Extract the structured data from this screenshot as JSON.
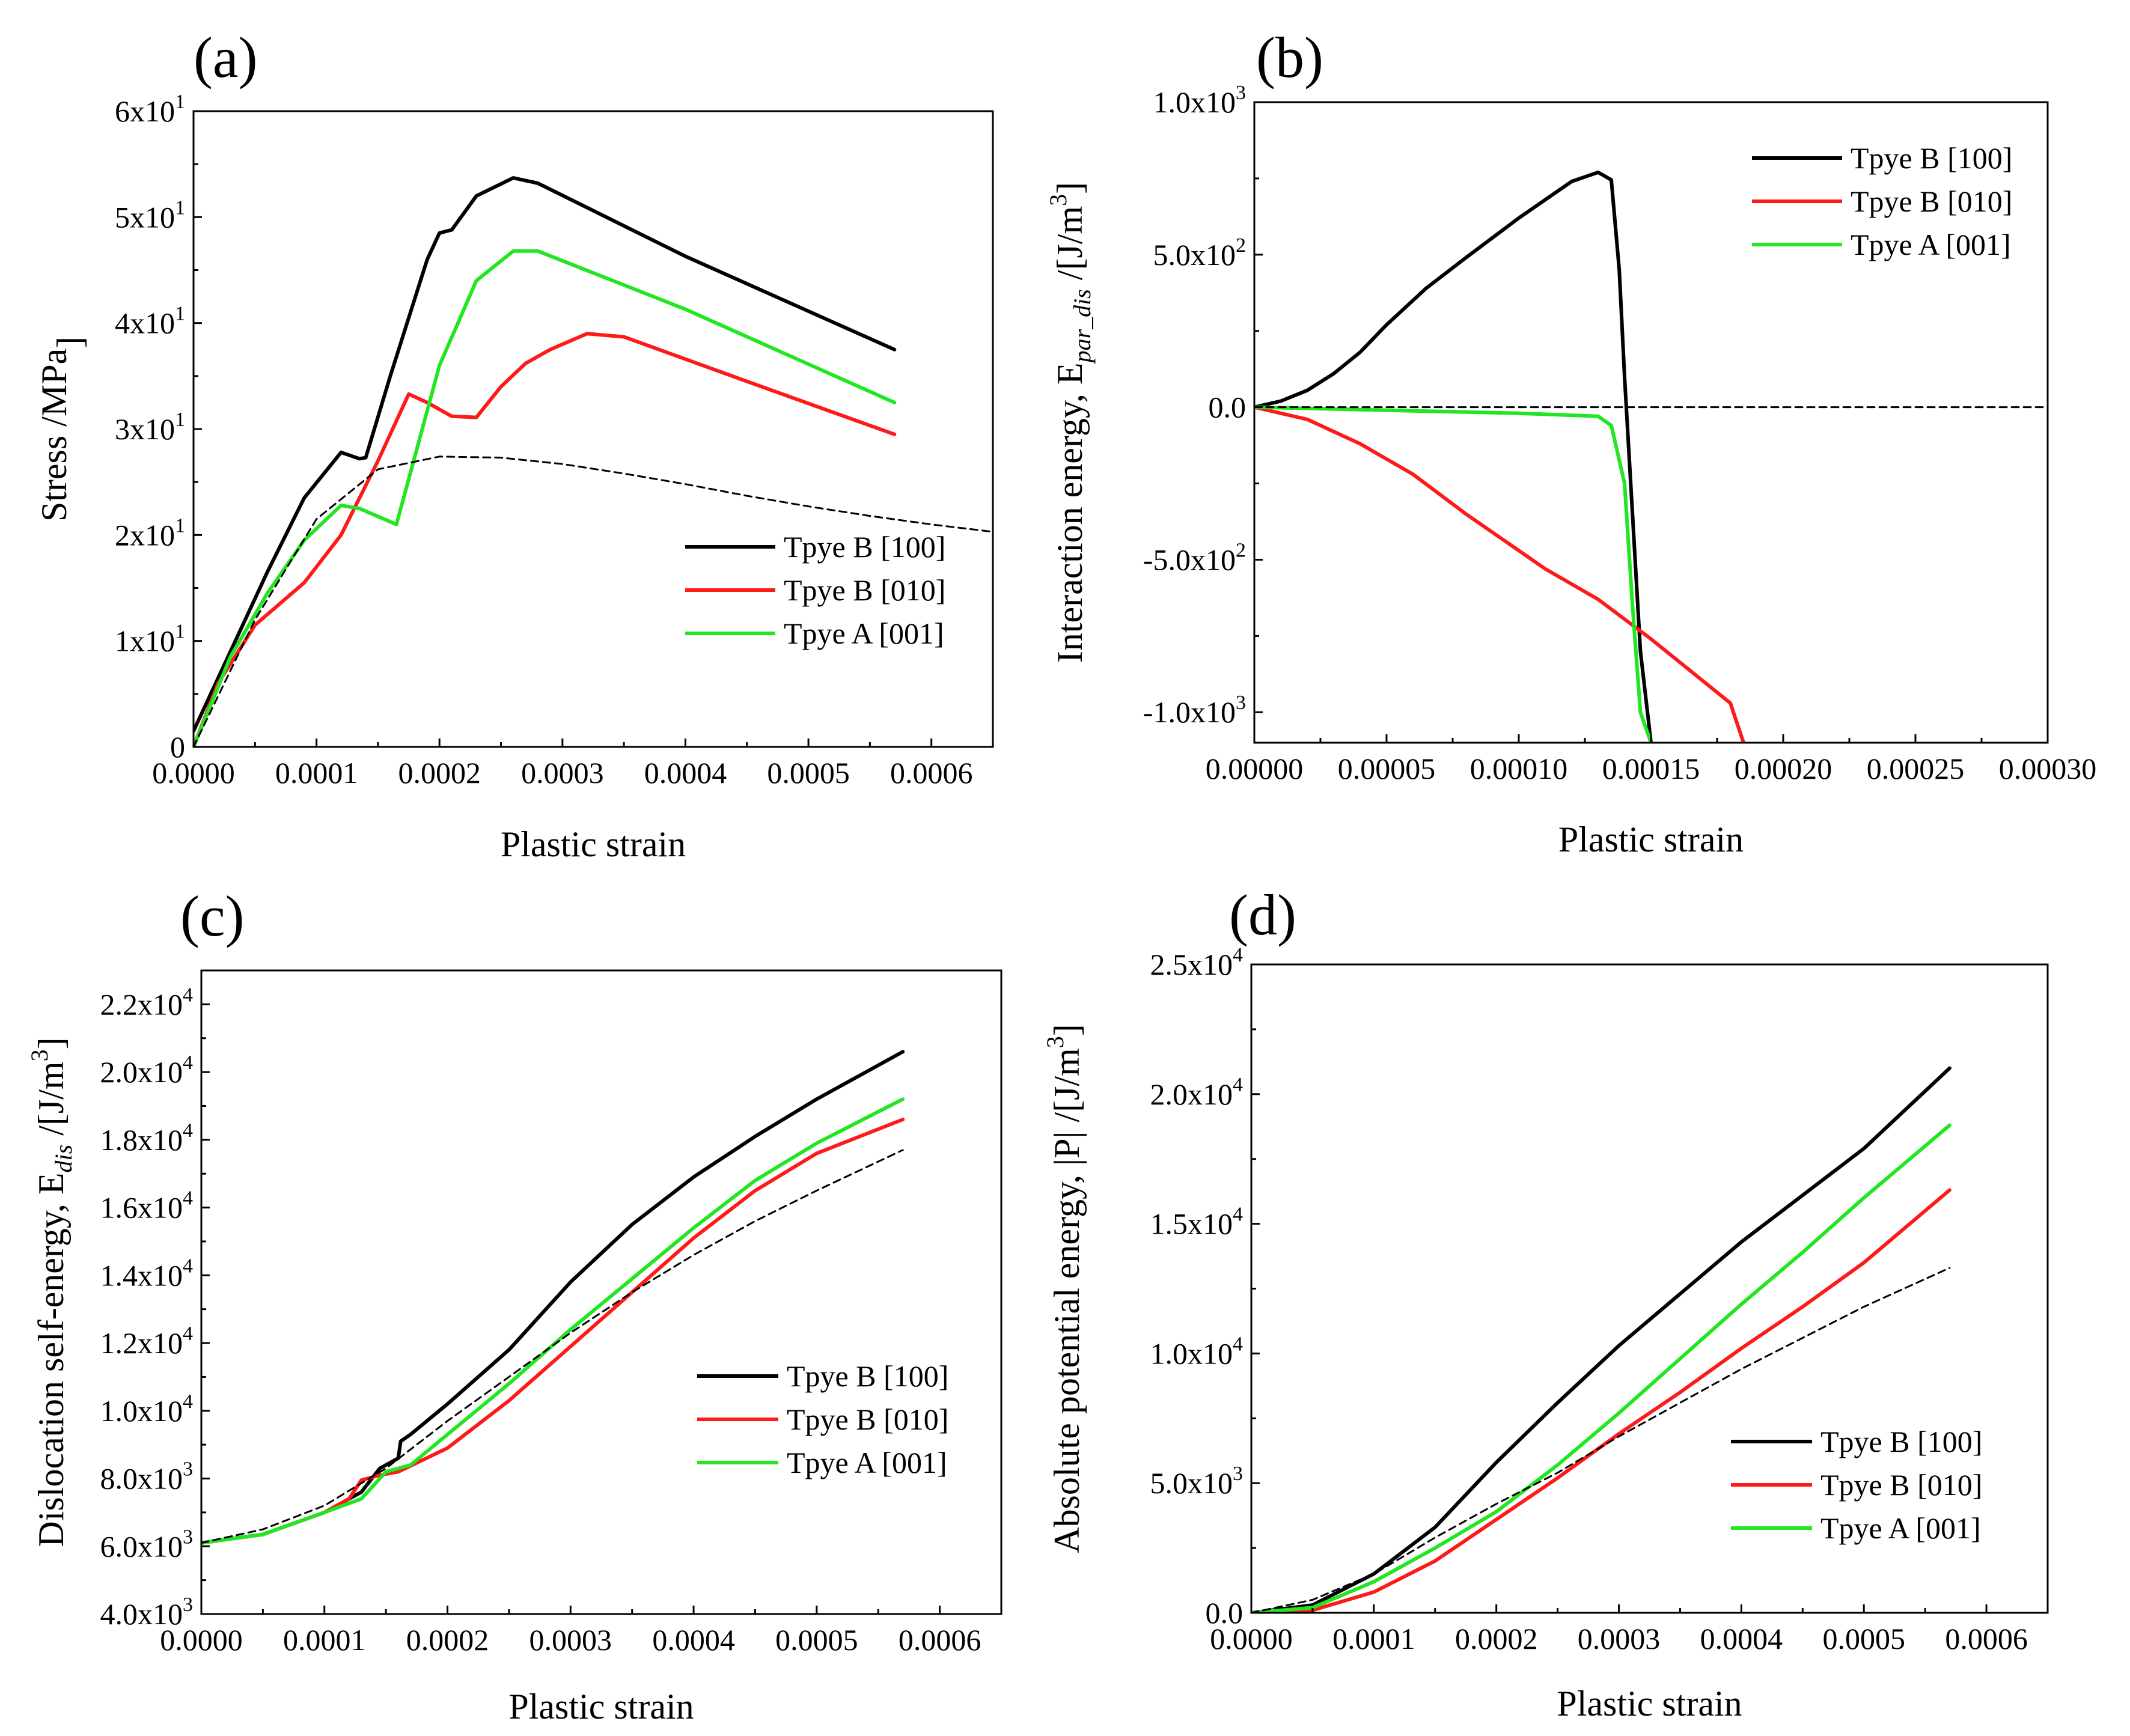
{
  "figure": {
    "colors": {
      "black": "#000000",
      "red": "#ff1a1a",
      "green": "#22e622",
      "dashed": "#000000"
    }
  },
  "chart_data": [
    {
      "id": "a",
      "type": "line",
      "panel_label": "(a)",
      "xlabel": "Plastic strain",
      "ylabel": "Stress /MPa",
      "xlim": [
        0,
        0.00065
      ],
      "ylim": [
        0,
        60
      ],
      "xticks": [
        0,
        0.0001,
        0.0002,
        0.0003,
        0.0004,
        0.0005,
        0.0006
      ],
      "xtick_labels": [
        "0.0000",
        "0.0001",
        "0.0002",
        "0.0003",
        "0.0004",
        "0.0005",
        "0.0006"
      ],
      "yticks": [
        0,
        10,
        20,
        30,
        40,
        50,
        60
      ],
      "ytick_labels": [
        {
          "text": "0"
        },
        {
          "base": "1x10",
          "exp": "1"
        },
        {
          "base": "2x10",
          "exp": "1"
        },
        {
          "base": "3x10",
          "exp": "1"
        },
        {
          "base": "4x10",
          "exp": "1"
        },
        {
          "base": "5x10",
          "exp": "1"
        },
        {
          "base": "6x10",
          "exp": "1"
        }
      ],
      "legend": {
        "position": "lower-right",
        "entries": [
          "Tpye B [100]",
          "Tpye B [010]",
          "Tpye A [001]"
        ]
      },
      "series": [
        {
          "name": "Tpye B [100]",
          "color": "#000000",
          "x": [
            0,
            3e-05,
            6e-05,
            9e-05,
            0.00012,
            0.000135,
            0.00014,
            0.00016,
            0.00019,
            0.0002,
            0.00021,
            0.00023,
            0.00026,
            0.00028,
            0.0004,
            0.00057
          ],
          "y": [
            1.5,
            9,
            16.5,
            23.5,
            27.8,
            27.2,
            27.3,
            35,
            46,
            48.5,
            48.8,
            52,
            53.7,
            53.2,
            46.3,
            37.5
          ]
        },
        {
          "name": "Tpye B [010]",
          "color": "#ff1a1a",
          "x": [
            0,
            2e-05,
            5e-05,
            9e-05,
            0.00012,
            0.00015,
            0.000175,
            0.00019,
            0.00021,
            0.00023,
            0.00025,
            0.00027,
            0.00029,
            0.00032,
            0.00035,
            0.00045,
            0.00057
          ],
          "y": [
            0,
            6,
            11.5,
            15.5,
            20,
            27,
            33.3,
            32.5,
            31.2,
            31.1,
            34,
            36.2,
            37.5,
            39,
            38.7,
            34.5,
            29.5
          ]
        },
        {
          "name": "Tpye A [001]",
          "color": "#22e622",
          "x": [
            0,
            3e-05,
            6e-05,
            9e-05,
            0.00012,
            0.000135,
            0.000165,
            0.0002,
            0.00023,
            0.00026,
            0.00028,
            0.0004,
            0.00057
          ],
          "y": [
            0,
            8.5,
            14.5,
            19.5,
            22.8,
            22.5,
            21,
            36,
            44,
            46.8,
            46.8,
            41.3,
            32.5
          ]
        },
        {
          "name": "dashed",
          "color": "#000000",
          "dashed": true,
          "x": [
            0,
            5e-05,
            0.0001,
            0.00015,
            0.0002,
            0.00025,
            0.0003,
            0.00035,
            0.0004,
            0.00045,
            0.0005,
            0.00055,
            0.0006,
            0.00065
          ],
          "y": [
            0,
            12,
            21.5,
            26.2,
            27.4,
            27.3,
            26.7,
            25.8,
            24.8,
            23.7,
            22.7,
            21.8,
            21,
            20.3
          ]
        }
      ]
    },
    {
      "id": "b",
      "type": "line",
      "panel_label": "(b)",
      "xlabel": "Plastic strain",
      "ylabel": "Interaction energy, E",
      "ylabel_sub": "par_dis",
      "ylabel_unit": "/[J/m",
      "ylabel_unit_sup": "3",
      "xlim": [
        0,
        0.0003
      ],
      "ylim": [
        -1100,
        1000
      ],
      "xticks": [
        0,
        5e-05,
        0.0001,
        0.00015,
        0.0002,
        0.00025,
        0.0003
      ],
      "xtick_labels": [
        "0.00000",
        "0.00005",
        "0.00010",
        "0.00015",
        "0.00020",
        "0.00025",
        "0.00030"
      ],
      "yticks": [
        -1000,
        -500,
        0,
        500,
        1000
      ],
      "ytick_labels": [
        {
          "base": "-1.0x10",
          "exp": "3"
        },
        {
          "base": "-5.0x10",
          "exp": "2"
        },
        {
          "text": "0.0"
        },
        {
          "base": "5.0x10",
          "exp": "2"
        },
        {
          "base": "1.0x10",
          "exp": "3"
        }
      ],
      "legend": {
        "position": "top-right",
        "entries": [
          "Tpye B [100]",
          "Tpye B [010]",
          "Tpye A [001]"
        ]
      },
      "series": [
        {
          "name": "Tpye B [100]",
          "color": "#000000",
          "x": [
            0,
            1e-05,
            2e-05,
            3e-05,
            4e-05,
            5e-05,
            6.5e-05,
            8e-05,
            0.0001,
            0.00012,
            0.00013,
            0.000135,
            0.000138,
            0.00014,
            0.000143,
            0.000146,
            0.00015
          ],
          "y": [
            0,
            20,
            55,
            110,
            180,
            270,
            390,
            490,
            620,
            740,
            770,
            745,
            450,
            100,
            -350,
            -800,
            -1100
          ]
        },
        {
          "name": "Tpye B [010]",
          "color": "#ff1a1a",
          "x": [
            0,
            2e-05,
            4e-05,
            6e-05,
            8e-05,
            0.0001,
            0.00011,
            0.00013,
            0.00015,
            0.00016,
            0.00017,
            0.00018,
            0.000185
          ],
          "y": [
            0,
            -40,
            -120,
            -220,
            -350,
            -470,
            -530,
            -630,
            -760,
            -830,
            -900,
            -970,
            -1100
          ]
        },
        {
          "name": "Tpye A [001]",
          "color": "#22e622",
          "x": [
            0,
            5e-05,
            0.0001,
            0.00013,
            0.000135,
            0.00014,
            0.000143,
            0.000146,
            0.00015
          ],
          "y": [
            0,
            -10,
            -20,
            -30,
            -60,
            -250,
            -650,
            -1000,
            -1100
          ]
        },
        {
          "name": "dashed",
          "color": "#000000",
          "dashed": true,
          "x": [
            0,
            0.0003
          ],
          "y": [
            0,
            0
          ]
        }
      ]
    },
    {
      "id": "c",
      "type": "line",
      "panel_label": "(c)",
      "xlabel": "Plastic strain",
      "ylabel": "Dislocation self-energy, E",
      "ylabel_sub": "dis",
      "ylabel_unit": "/[J/m",
      "ylabel_unit_sup": "3",
      "xlim": [
        0,
        0.00065
      ],
      "ylim": [
        4000,
        23000
      ],
      "xticks": [
        0,
        0.0001,
        0.0002,
        0.0003,
        0.0004,
        0.0005,
        0.0006
      ],
      "xtick_labels": [
        "0.0000",
        "0.0001",
        "0.0002",
        "0.0003",
        "0.0004",
        "0.0005",
        "0.0006"
      ],
      "yticks": [
        4000,
        6000,
        8000,
        10000,
        12000,
        14000,
        16000,
        18000,
        20000,
        22000
      ],
      "ytick_labels": [
        {
          "base": "4.0x10",
          "exp": "3"
        },
        {
          "base": "6.0x10",
          "exp": "3"
        },
        {
          "base": "8.0x10",
          "exp": "3"
        },
        {
          "base": "1.0x10",
          "exp": "4"
        },
        {
          "base": "1.2x10",
          "exp": "4"
        },
        {
          "base": "1.4x10",
          "exp": "4"
        },
        {
          "base": "1.6x10",
          "exp": "4"
        },
        {
          "base": "1.8x10",
          "exp": "4"
        },
        {
          "base": "2.0x10",
          "exp": "4"
        },
        {
          "base": "2.2x10",
          "exp": "4"
        }
      ],
      "legend": {
        "position": "lower-right",
        "entries": [
          "Tpye B [100]",
          "Tpye B [010]",
          "Tpye A [001]"
        ]
      },
      "series": [
        {
          "name": "Tpye B [100]",
          "color": "#000000",
          "x": [
            0,
            5e-05,
            0.0001,
            0.00013,
            0.000145,
            0.00016,
            0.000162,
            0.00017,
            0.0002,
            0.00025,
            0.0003,
            0.00035,
            0.0004,
            0.00045,
            0.0005,
            0.00057
          ],
          "y": [
            6100,
            6350,
            7000,
            7600,
            8300,
            8600,
            9100,
            9300,
            10200,
            11800,
            13800,
            15500,
            16900,
            18100,
            19200,
            20600
          ]
        },
        {
          "name": "Tpye B [010]",
          "color": "#ff1a1a",
          "x": [
            0,
            5e-05,
            0.0001,
            0.00012,
            0.00013,
            0.000145,
            0.00016,
            0.0002,
            0.00025,
            0.0003,
            0.00035,
            0.0004,
            0.00045,
            0.0005,
            0.00057
          ],
          "y": [
            6100,
            6350,
            7000,
            7400,
            7950,
            8100,
            8200,
            8900,
            10300,
            11900,
            13500,
            15100,
            16500,
            17600,
            18600
          ]
        },
        {
          "name": "Tpye A [001]",
          "color": "#22e622",
          "x": [
            0,
            5e-05,
            0.0001,
            0.00013,
            0.00015,
            0.00017,
            0.0002,
            0.00025,
            0.0003,
            0.00035,
            0.0004,
            0.00045,
            0.0005,
            0.00057
          ],
          "y": [
            6100,
            6350,
            7000,
            7400,
            8200,
            8400,
            9300,
            10800,
            12400,
            13900,
            15400,
            16800,
            17900,
            19200
          ]
        },
        {
          "name": "dashed",
          "color": "#000000",
          "dashed": true,
          "x": [
            0,
            5e-05,
            0.0001,
            0.00015,
            0.0002,
            0.00025,
            0.0003,
            0.00035,
            0.0004,
            0.00045,
            0.0005,
            0.00057
          ],
          "y": [
            6100,
            6500,
            7200,
            8300,
            9700,
            11000,
            12300,
            13500,
            14600,
            15600,
            16500,
            17700
          ]
        }
      ]
    },
    {
      "id": "d",
      "type": "line",
      "panel_label": "(d)",
      "xlabel": "Plastic strain",
      "ylabel": "Absolute potential energy, |P| /[J/m",
      "ylabel_unit_sup": "3",
      "xlim": [
        0,
        0.00065
      ],
      "ylim": [
        0,
        25000
      ],
      "xticks": [
        0,
        0.0001,
        0.0002,
        0.0003,
        0.0004,
        0.0005,
        0.0006
      ],
      "xtick_labels": [
        "0.0000",
        "0.0001",
        "0.0002",
        "0.0003",
        "0.0004",
        "0.0005",
        "0.0006"
      ],
      "yticks": [
        0,
        5000,
        10000,
        15000,
        20000,
        25000
      ],
      "ytick_labels": [
        {
          "text": "0.0"
        },
        {
          "base": "5.0x10",
          "exp": "3"
        },
        {
          "base": "1.0x10",
          "exp": "4"
        },
        {
          "base": "1.5x10",
          "exp": "4"
        },
        {
          "base": "2.0x10",
          "exp": "4"
        },
        {
          "base": "2.5x10",
          "exp": "4"
        }
      ],
      "legend": {
        "position": "lower-right",
        "entries": [
          "Tpye B [100]",
          "Tpye B [010]",
          "Tpye A [001]"
        ]
      },
      "series": [
        {
          "name": "Tpye B [100]",
          "color": "#000000",
          "x": [
            0,
            5e-05,
            0.0001,
            0.00015,
            0.0002,
            0.00025,
            0.0003,
            0.00035,
            0.0004,
            0.00045,
            0.0005,
            0.00057
          ],
          "y": [
            0,
            300,
            1500,
            3300,
            5800,
            8100,
            10300,
            12300,
            14300,
            16100,
            17900,
            21000
          ]
        },
        {
          "name": "Tpye B [010]",
          "color": "#ff1a1a",
          "x": [
            0,
            5e-05,
            0.0001,
            0.00015,
            0.0002,
            0.00025,
            0.0003,
            0.00035,
            0.0004,
            0.00045,
            0.0005,
            0.00057
          ],
          "y": [
            0,
            100,
            800,
            2000,
            3600,
            5200,
            6900,
            8500,
            10200,
            11800,
            13500,
            16300
          ]
        },
        {
          "name": "Tpye A [001]",
          "color": "#22e622",
          "x": [
            0,
            5e-05,
            0.0001,
            0.00015,
            0.0002,
            0.00025,
            0.0003,
            0.00035,
            0.0004,
            0.00045,
            0.0005,
            0.00057
          ],
          "y": [
            0,
            200,
            1200,
            2500,
            3900,
            5700,
            7700,
            9800,
            11900,
            13900,
            16000,
            18800
          ]
        },
        {
          "name": "dashed",
          "color": "#000000",
          "dashed": true,
          "x": [
            0,
            5e-05,
            0.0001,
            0.00015,
            0.0002,
            0.00025,
            0.0003,
            0.00035,
            0.0004,
            0.00045,
            0.0005,
            0.00057
          ],
          "y": [
            0,
            500,
            1500,
            2900,
            4200,
            5400,
            6800,
            8100,
            9400,
            10600,
            11800,
            13300
          ]
        }
      ]
    }
  ]
}
